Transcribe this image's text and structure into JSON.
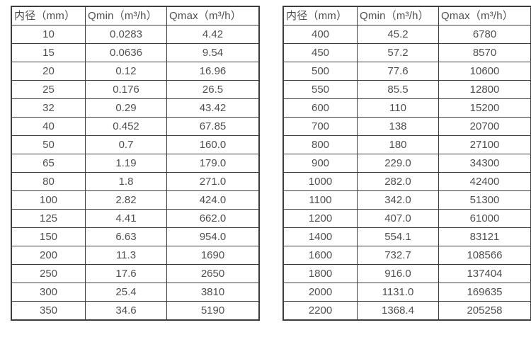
{
  "colors": {
    "border": "#3c3c3c",
    "text": "#4f4f4f",
    "background": "#ffffff"
  },
  "tables": [
    {
      "name": "flow-table-small-diameters",
      "headers": [
        "内径（mm）",
        "Qmin（m³/h）",
        "Qmax（m³/h）"
      ],
      "rows": [
        [
          "10",
          "0.0283",
          "4.42"
        ],
        [
          "15",
          "0.0636",
          "9.54"
        ],
        [
          "20",
          "0.12",
          "16.96"
        ],
        [
          "25",
          "0.176",
          "26.5"
        ],
        [
          "32",
          "0.29",
          "43.42"
        ],
        [
          "40",
          "0.452",
          "67.85"
        ],
        [
          "50",
          "0.7",
          "160.0"
        ],
        [
          "65",
          "1.19",
          "179.0"
        ],
        [
          "80",
          "1.8",
          "271.0"
        ],
        [
          "100",
          "2.82",
          "424.0"
        ],
        [
          "125",
          "4.41",
          "662.0"
        ],
        [
          "150",
          "6.63",
          "954.0"
        ],
        [
          "200",
          "11.3",
          "1690"
        ],
        [
          "250",
          "17.6",
          "2650"
        ],
        [
          "300",
          "25.4",
          "3810"
        ],
        [
          "350",
          "34.6",
          "5190"
        ]
      ]
    },
    {
      "name": "flow-table-large-diameters",
      "headers": [
        "内径（mm）",
        "Qmin（m³/h）",
        "Qmax（m³/h）"
      ],
      "rows": [
        [
          "400",
          "45.2",
          "6780"
        ],
        [
          "450",
          "57.2",
          "8570"
        ],
        [
          "500",
          "77.6",
          "10600"
        ],
        [
          "550",
          "85.5",
          "12800"
        ],
        [
          "600",
          "110",
          "15200"
        ],
        [
          "700",
          "138",
          "20700"
        ],
        [
          "800",
          "180",
          "27100"
        ],
        [
          "900",
          "229.0",
          "34300"
        ],
        [
          "1000",
          "282.0",
          "42400"
        ],
        [
          "1100",
          "342.0",
          "51300"
        ],
        [
          "1200",
          "407.0",
          "61000"
        ],
        [
          "1400",
          "554.1",
          "83121"
        ],
        [
          "1600",
          "732.7",
          "108566"
        ],
        [
          "1800",
          "916.0",
          "137404"
        ],
        [
          "2000",
          "1131.0",
          "169635"
        ],
        [
          "2200",
          "1368.4",
          "205258"
        ]
      ]
    }
  ]
}
